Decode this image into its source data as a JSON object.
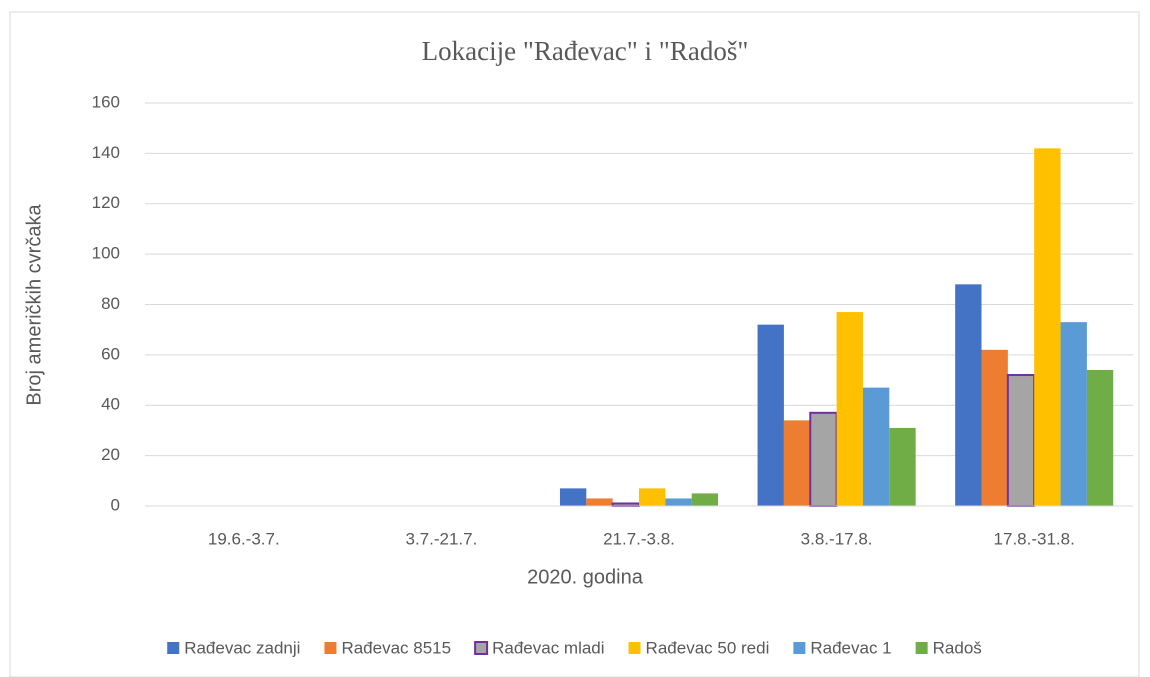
{
  "chart_data": {
    "type": "bar",
    "title": "Lokacije \"Rađevac\" i \"Radoš\"",
    "x_label": "2020. godina",
    "y_label": "Broj američkih cvrčaka",
    "categories": [
      "19.6.-3.7.",
      "3.7.-21.7.",
      "21.7.-3.8.",
      "3.8.-17.8.",
      "17.8.-31.8."
    ],
    "series": [
      {
        "name": "Rađevac zadnji",
        "color": "#4472c4",
        "values": [
          0,
          0,
          7,
          72,
          88
        ]
      },
      {
        "name": "Rađevac 8515",
        "color": "#ed7d31",
        "values": [
          0,
          0,
          3,
          34,
          62
        ]
      },
      {
        "name": "Rađevac mladi",
        "color": "#a5a5a5",
        "stroke": "#7030a0",
        "values": [
          0,
          0,
          1,
          37,
          52
        ]
      },
      {
        "name": "Rađevac 50 redi",
        "color": "#ffc000",
        "values": [
          0,
          0,
          7,
          77,
          142
        ]
      },
      {
        "name": "Rađevac 1",
        "color": "#5b9bd5",
        "values": [
          0,
          0,
          3,
          47,
          73
        ]
      },
      {
        "name": "Radoš",
        "color": "#70ad47",
        "values": [
          0,
          0,
          5,
          31,
          54
        ]
      }
    ],
    "ylim": [
      0,
      160
    ],
    "yticks": [
      0,
      20,
      40,
      60,
      80,
      100,
      120,
      140,
      160
    ],
    "grid": true,
    "legend": "bottom"
  }
}
